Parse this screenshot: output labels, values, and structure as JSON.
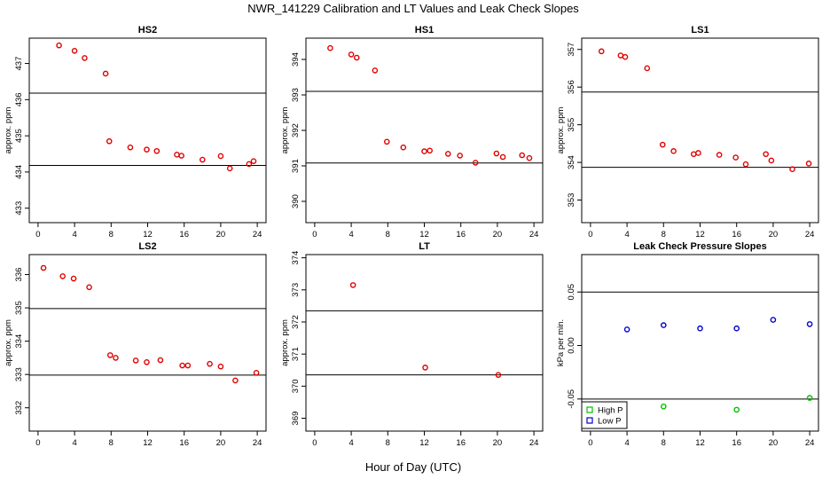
{
  "title": "NWR_141229  Calibration and LT Values and Leak Check Slopes",
  "xlabel": "Hour of Day (UTC)",
  "chart_data": [
    {
      "type": "scatter",
      "title": "HS2",
      "ylabel": "approx. ppm",
      "xlim": [
        0,
        24
      ],
      "ylim": [
        432.6,
        437.7
      ],
      "xticks": [
        0,
        4,
        8,
        12,
        16,
        20,
        24
      ],
      "yticks": [
        433,
        434,
        435,
        436,
        437
      ],
      "hlines": [
        436.18,
        434.18
      ],
      "series": [
        {
          "color": "#e00000",
          "x": [
            2.3,
            4.0,
            5.1,
            7.4,
            7.8,
            10.1,
            11.9,
            13.0,
            15.2,
            15.7,
            18.0,
            20.0,
            21.0,
            23.1,
            23.6
          ],
          "y": [
            437.5,
            437.35,
            437.15,
            436.72,
            434.85,
            434.68,
            434.62,
            434.58,
            434.48,
            434.45,
            434.34,
            434.44,
            434.1,
            434.22,
            434.3
          ]
        }
      ]
    },
    {
      "type": "scatter",
      "title": "HS1",
      "ylabel": "approx. ppm",
      "xlim": [
        0,
        24
      ],
      "ylim": [
        389.4,
        394.6
      ],
      "xticks": [
        0,
        4,
        8,
        12,
        16,
        20,
        24
      ],
      "yticks": [
        390,
        391,
        392,
        393,
        394
      ],
      "hlines": [
        393.1,
        391.08
      ],
      "series": [
        {
          "color": "#e00000",
          "x": [
            1.7,
            4.0,
            4.6,
            6.6,
            7.9,
            9.7,
            12.0,
            12.6,
            14.6,
            15.9,
            17.6,
            19.9,
            20.6,
            22.7,
            23.5
          ],
          "y": [
            394.32,
            394.14,
            394.05,
            393.69,
            391.68,
            391.52,
            391.41,
            391.43,
            391.34,
            391.29,
            391.09,
            391.35,
            391.25,
            391.3,
            391.22
          ]
        }
      ]
    },
    {
      "type": "scatter",
      "title": "LS1",
      "ylabel": "approx. ppm",
      "xlim": [
        0,
        24
      ],
      "ylim": [
        352.4,
        357.3
      ],
      "xticks": [
        0,
        4,
        8,
        12,
        16,
        20,
        24
      ],
      "yticks": [
        353,
        354,
        355,
        356,
        357
      ],
      "hlines": [
        355.87,
        353.87
      ],
      "series": [
        {
          "color": "#e00000",
          "x": [
            1.2,
            3.3,
            3.8,
            6.2,
            7.9,
            9.1,
            11.3,
            11.8,
            14.1,
            15.9,
            17.0,
            19.2,
            19.8,
            22.1,
            23.9
          ],
          "y": [
            356.95,
            356.84,
            356.8,
            356.5,
            354.47,
            354.3,
            354.22,
            354.25,
            354.2,
            354.13,
            353.95,
            354.22,
            354.05,
            353.82,
            353.97
          ]
        }
      ]
    },
    {
      "type": "scatter",
      "title": "LS2",
      "ylabel": "approx. ppm",
      "xlim": [
        0,
        24
      ],
      "ylim": [
        331.3,
        336.6
      ],
      "xticks": [
        0,
        4,
        8,
        12,
        16,
        20,
        24
      ],
      "yticks": [
        332,
        333,
        334,
        335,
        336
      ],
      "hlines": [
        334.98,
        332.98
      ],
      "series": [
        {
          "color": "#e00000",
          "x": [
            0.6,
            2.7,
            3.9,
            5.6,
            7.9,
            8.5,
            10.7,
            11.9,
            13.4,
            15.8,
            16.4,
            18.8,
            20.0,
            21.6,
            23.9
          ],
          "y": [
            336.2,
            335.95,
            335.88,
            335.62,
            333.58,
            333.5,
            333.42,
            333.37,
            333.43,
            333.27,
            333.27,
            333.32,
            333.24,
            332.82,
            333.05
          ]
        }
      ]
    },
    {
      "type": "scatter",
      "title": "LT",
      "ylabel": "approx. ppm",
      "xlim": [
        0,
        24
      ],
      "ylim": [
        368.6,
        374.1
      ],
      "xticks": [
        0,
        4,
        8,
        12,
        16,
        20,
        24
      ],
      "yticks": [
        369,
        370,
        371,
        372,
        373,
        374
      ],
      "hlines": [
        372.35,
        370.35
      ],
      "series": [
        {
          "color": "#e00000",
          "x": [
            4.2,
            12.1,
            20.1
          ],
          "y": [
            373.15,
            370.58,
            370.35
          ]
        }
      ]
    },
    {
      "type": "scatter",
      "title": "Leak Check Pressure Slopes",
      "ylabel": "kPa per min.",
      "xlim": [
        0,
        24
      ],
      "ylim": [
        -0.08,
        0.085
      ],
      "xticks": [
        0,
        4,
        8,
        12,
        16,
        20,
        24
      ],
      "yticks": [
        -0.05,
        0.0,
        0.05
      ],
      "ytick_labels": [
        "-0.05",
        "0.00",
        "0.05"
      ],
      "hlines": [
        0.05,
        -0.05
      ],
      "legend": {
        "position": "bottom-left",
        "entries": [
          "High P",
          "Low P"
        ]
      },
      "series": [
        {
          "name": "High P",
          "color": "#00c000",
          "x": [
            8.0,
            16.0,
            24.0
          ],
          "y": [
            -0.057,
            -0.06,
            -0.049
          ]
        },
        {
          "name": "Low P",
          "color": "#0000d0",
          "x": [
            4.0,
            8.0,
            12.0,
            16.0,
            20.0,
            24.0
          ],
          "y": [
            0.015,
            0.019,
            0.016,
            0.016,
            0.024,
            0.02
          ]
        }
      ]
    }
  ]
}
